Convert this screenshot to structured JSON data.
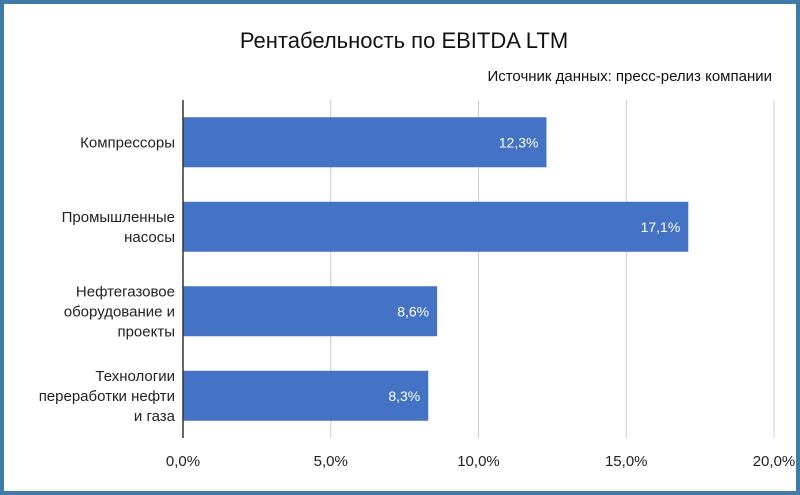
{
  "chart_data": {
    "type": "bar",
    "orientation": "horizontal",
    "title": "Рентабельность по EBITDA LTM",
    "subtitle": "Источник данных: пресс-релиз компании",
    "categories": [
      [
        "Компрессоры"
      ],
      [
        "Промышленные",
        "насосы"
      ],
      [
        "Нефтегазовое",
        "оборудование и",
        "проекты"
      ],
      [
        "Технологии",
        "переработки нефти",
        "и газа"
      ]
    ],
    "values": [
      12.3,
      17.1,
      8.6,
      8.3
    ],
    "value_labels": [
      "12,3%",
      "17,1%",
      "8,6%",
      "8,3%"
    ],
    "xlim": [
      0,
      20
    ],
    "xticks": [
      0,
      5,
      10,
      15,
      20
    ],
    "xtick_labels": [
      "0,0%",
      "5,0%",
      "10,0%",
      "15,0%",
      "20,0%"
    ],
    "xlabel": "",
    "ylabel": "",
    "grid": true,
    "colors": {
      "bar": "#4472c4",
      "grid": "#cccccc",
      "axis": "#333333",
      "frame": "#3e7ba6"
    }
  }
}
